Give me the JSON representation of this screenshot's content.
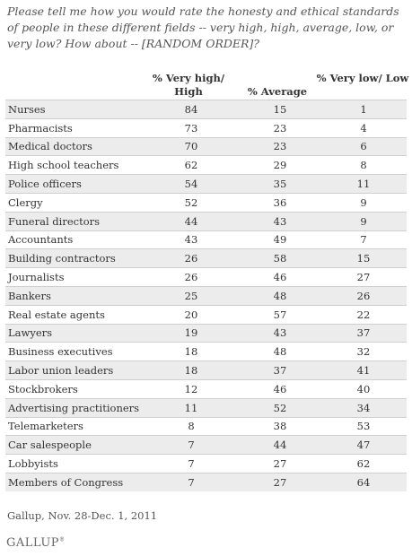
{
  "question": "Please tell me how you would rate the honesty and ethical standards of people in these different fields -- very high, high, average, low, or very low? How about -- [RANDOM ORDER]?",
  "chart_data": {
    "type": "table",
    "columns": [
      "% Very high/ High",
      "% Average",
      "% Very low/ Low"
    ],
    "rows": [
      {
        "label": "Nurses",
        "values": [
          84,
          15,
          1
        ]
      },
      {
        "label": "Pharmacists",
        "values": [
          73,
          23,
          4
        ]
      },
      {
        "label": "Medical doctors",
        "values": [
          70,
          23,
          6
        ]
      },
      {
        "label": "High school teachers",
        "values": [
          62,
          29,
          8
        ]
      },
      {
        "label": "Police officers",
        "values": [
          54,
          35,
          11
        ]
      },
      {
        "label": "Clergy",
        "values": [
          52,
          36,
          9
        ]
      },
      {
        "label": "Funeral directors",
        "values": [
          44,
          43,
          9
        ]
      },
      {
        "label": "Accountants",
        "values": [
          43,
          49,
          7
        ]
      },
      {
        "label": "Building contractors",
        "values": [
          26,
          58,
          15
        ]
      },
      {
        "label": "Journalists",
        "values": [
          26,
          46,
          27
        ]
      },
      {
        "label": "Bankers",
        "values": [
          25,
          48,
          26
        ]
      },
      {
        "label": "Real estate agents",
        "values": [
          20,
          57,
          22
        ]
      },
      {
        "label": "Lawyers",
        "values": [
          19,
          43,
          37
        ]
      },
      {
        "label": "Business executives",
        "values": [
          18,
          48,
          32
        ]
      },
      {
        "label": "Labor union leaders",
        "values": [
          18,
          37,
          41
        ]
      },
      {
        "label": "Stockbrokers",
        "values": [
          12,
          46,
          40
        ]
      },
      {
        "label": "Advertising practitioners",
        "values": [
          11,
          52,
          34
        ]
      },
      {
        "label": "Telemarketers",
        "values": [
          8,
          38,
          53
        ]
      },
      {
        "label": "Car salespeople",
        "values": [
          7,
          44,
          47
        ]
      },
      {
        "label": "Lobbyists",
        "values": [
          7,
          27,
          62
        ]
      },
      {
        "label": "Members of Congress",
        "values": [
          7,
          27,
          64
        ]
      }
    ]
  },
  "source": "Gallup, Nov. 28-Dec. 1, 2011",
  "logo": {
    "text": "GALLUP",
    "mark": "®"
  },
  "colors": {
    "stripe": "#ececec",
    "text": "#333333"
  }
}
